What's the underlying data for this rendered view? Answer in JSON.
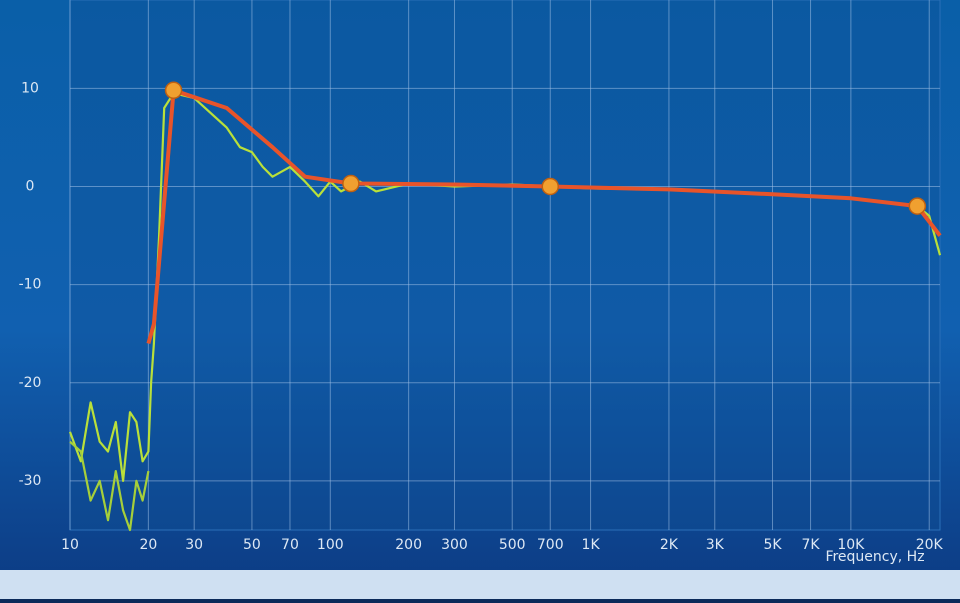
{
  "chart_data": {
    "type": "line",
    "x_label": "Frequency, Hz",
    "xscale": "log",
    "grid": true,
    "xlim": [
      10,
      22000
    ],
    "ylim": [
      -35,
      19
    ],
    "xticks": [
      10,
      20,
      30,
      50,
      70,
      100,
      200,
      300,
      500,
      700,
      {
        "value": 1000,
        "label": "1K"
      },
      {
        "value": 2000,
        "label": "2K"
      },
      {
        "value": 3000,
        "label": "3K"
      },
      {
        "value": 5000,
        "label": "5K"
      },
      {
        "value": 7000,
        "label": "7K"
      },
      {
        "value": 10000,
        "label": "10K"
      },
      {
        "value": 20000,
        "label": "20K"
      }
    ],
    "yticks": [
      10,
      0,
      -10,
      -20,
      -30
    ],
    "series": [
      {
        "color": "#b9e03a",
        "x": [
          10,
          11,
          12,
          13,
          14,
          15,
          16,
          17,
          18,
          19,
          20,
          20.5,
          21,
          22,
          23,
          25,
          30,
          40,
          45,
          50,
          55,
          60,
          70,
          80,
          90,
          100,
          110,
          130,
          150,
          200,
          300,
          500,
          1000,
          2000,
          5000,
          10000,
          18000,
          20000,
          22000
        ],
        "values": [
          -25,
          -28,
          -22,
          -26,
          -27,
          -24,
          -30,
          -23,
          -24,
          -28,
          -27,
          -20,
          -16,
          -5,
          8,
          9.5,
          9,
          6,
          4,
          3.5,
          2,
          1,
          2,
          0.5,
          -1,
          0.5,
          -0.5,
          0.5,
          -0.5,
          0.3,
          0,
          0.2,
          -0.2,
          -0.3,
          -0.8,
          -1.2,
          -2,
          -3,
          -7
        ]
      },
      {
        "color": "#a6cf3a",
        "x": [
          10,
          11,
          12,
          13,
          14,
          15,
          16,
          17,
          18,
          19,
          20
        ],
        "values": [
          -26,
          -27,
          -32,
          -30,
          -34,
          -29,
          -33,
          -35,
          -30,
          -32,
          -29
        ]
      },
      {
        "color": "#e8542a",
        "x": [
          20,
          21,
          25,
          40,
          60,
          80,
          120,
          300,
          700,
          2000,
          5000,
          10000,
          18000,
          22000
        ],
        "values": [
          -16,
          -14,
          9.8,
          8,
          4,
          1,
          0.3,
          0.2,
          0,
          -0.3,
          -0.8,
          -1.2,
          -2,
          -5
        ]
      },
      {
        "color": "#f0a030",
        "marker": true,
        "x": [
          25,
          120,
          700,
          18000
        ],
        "values": [
          9.8,
          0.3,
          0,
          -2
        ]
      }
    ]
  }
}
